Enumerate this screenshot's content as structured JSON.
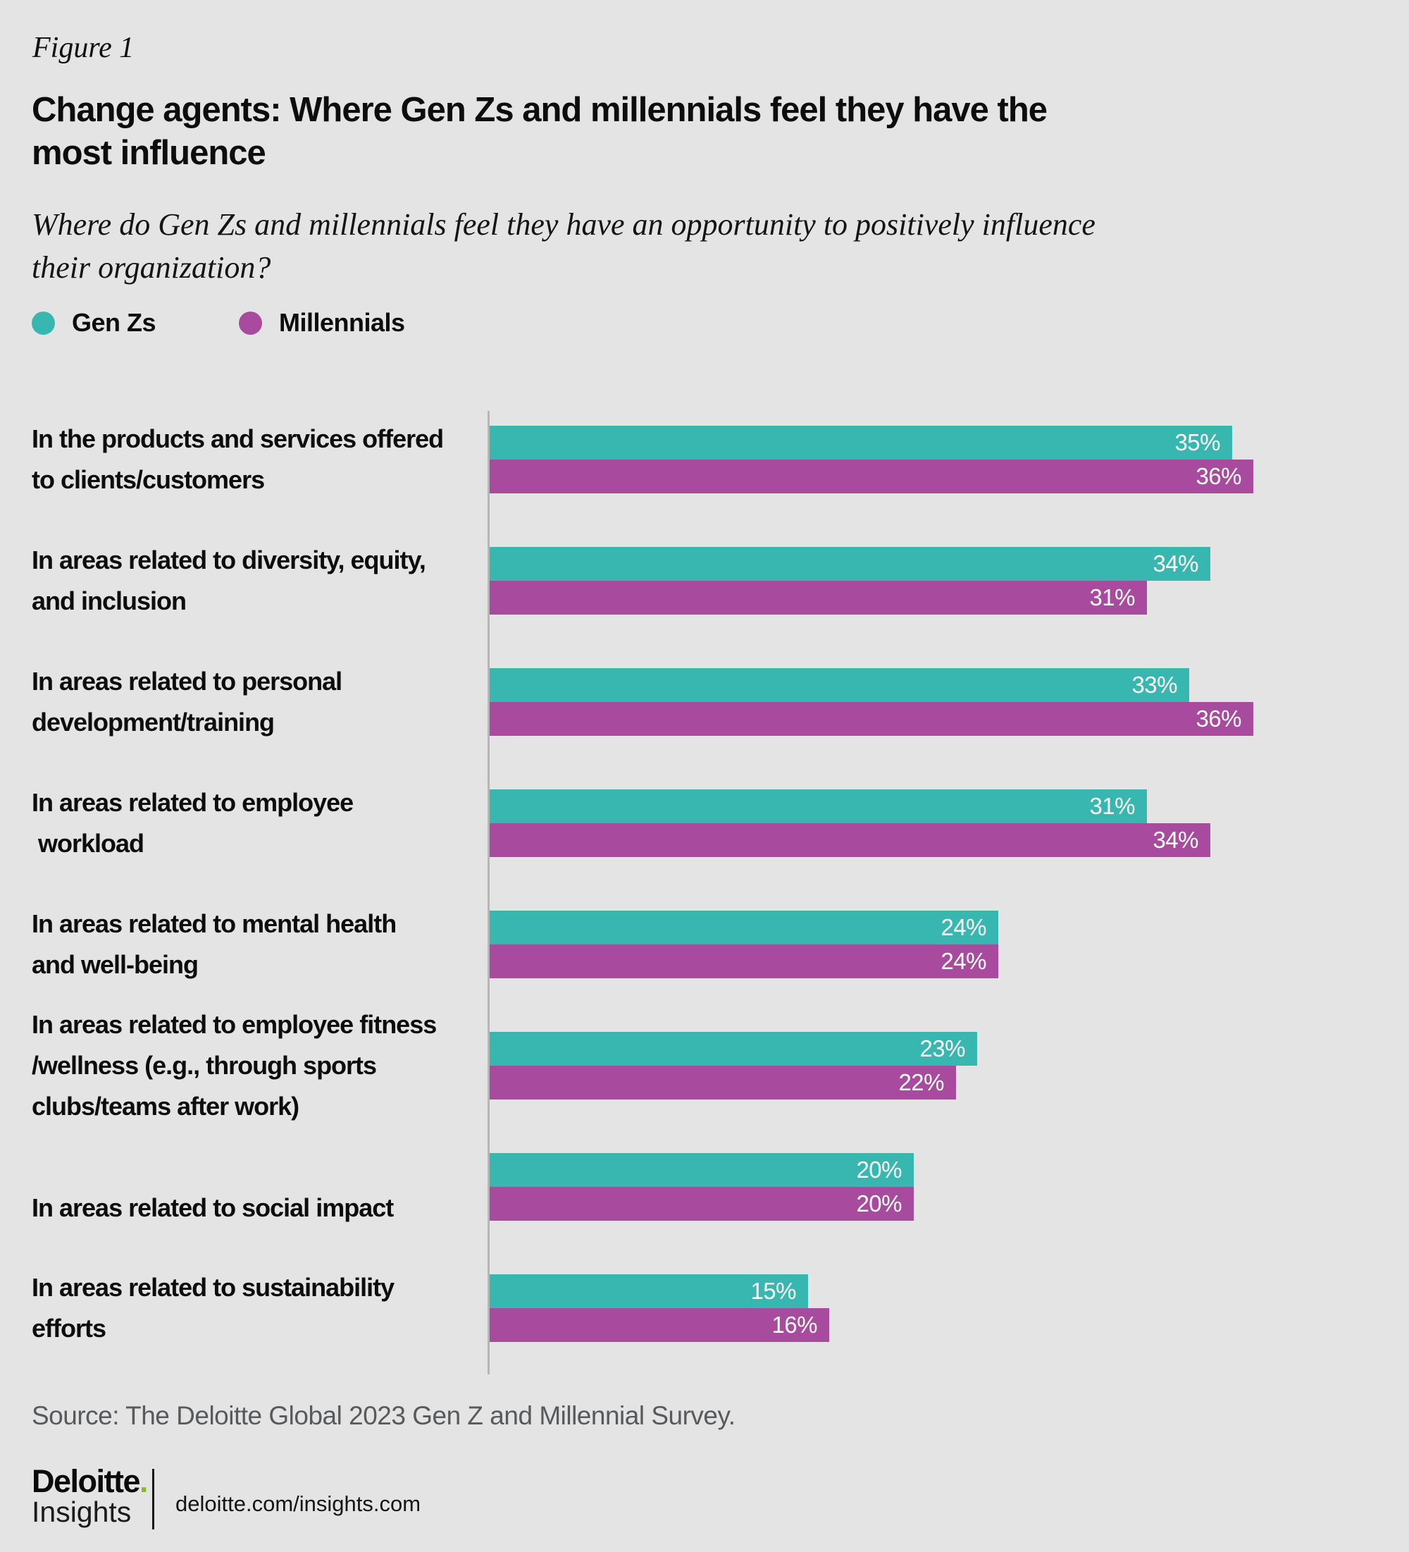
{
  "figure_label": "Figure 1",
  "title": "Change agents: Where Gen Zs and millennials feel they have the most influence",
  "title_lines": [
    "Change agents: Where Gen Zs and millennials feel they have the",
    "most influence"
  ],
  "subtitle": "Where do Gen Zs and millennials feel they have an opportunity to positively influence their organization?",
  "subtitle_lines": [
    "Where do Gen Zs and millennials feel they have an opportunity to positively influence",
    "their organization?"
  ],
  "colors": {
    "gen_zs_teal": "#38b7b1",
    "millennials_purple": "#a84b9f",
    "background_gray": "#e4e4e5",
    "deloitte_green": "#86bc25",
    "axis_line_gray": "#b4b6b8",
    "source_text_gray": "#58595b"
  },
  "legend": {
    "items": [
      {
        "label": "Gen Zs",
        "color": "#38b7b1"
      },
      {
        "label": "Millennials",
        "color": "#a84b9f"
      }
    ]
  },
  "chart_data": {
    "type": "bar",
    "orientation": "horizontal",
    "value_unit": "%",
    "xlim": [
      0,
      36
    ],
    "grid": false,
    "value_labels": "inside-right-white",
    "legend_position": "top-left",
    "categories": [
      "In the products and services offered to clients/customers",
      "In areas related to diversity, equity, and inclusion",
      "In areas related to personal development/training",
      "In areas related to employee workload",
      "In areas related to mental health and well-being",
      "In areas related to employee fitness /wellness (e.g., through sports clubs/teams after work)",
      "In areas related to social impact",
      "In areas related to sustainability efforts"
    ],
    "category_line_breaks": [
      [
        "In the products and services offered",
        "to clients/customers"
      ],
      [
        "In areas related to diversity, equity,",
        "and inclusion"
      ],
      [
        "In areas related to personal",
        "development/training"
      ],
      [
        "In areas related to employee",
        " workload"
      ],
      [
        "In areas related to mental health",
        "and well-being"
      ],
      [
        "In areas related to employee fitness",
        "/wellness (e.g., through sports",
        "clubs/teams after work)"
      ],
      [
        "In areas related to social impact"
      ],
      [
        "In areas related to sustainability",
        "efforts"
      ]
    ],
    "series": [
      {
        "name": "Gen Zs",
        "color": "#38b7b1",
        "values": [
          35,
          34,
          33,
          31,
          24,
          23,
          20,
          15
        ]
      },
      {
        "name": "Millennials",
        "color": "#a84b9f",
        "values": [
          36,
          31,
          36,
          34,
          24,
          22,
          20,
          16
        ]
      }
    ]
  },
  "source": "Source: The Deloitte Global 2023 Gen Z and Millennial Survey.",
  "footer": {
    "brand_name": "Deloitte",
    "brand_dot": ".",
    "brand_sub": "Insights",
    "url": "deloitte.com/insights.com"
  }
}
